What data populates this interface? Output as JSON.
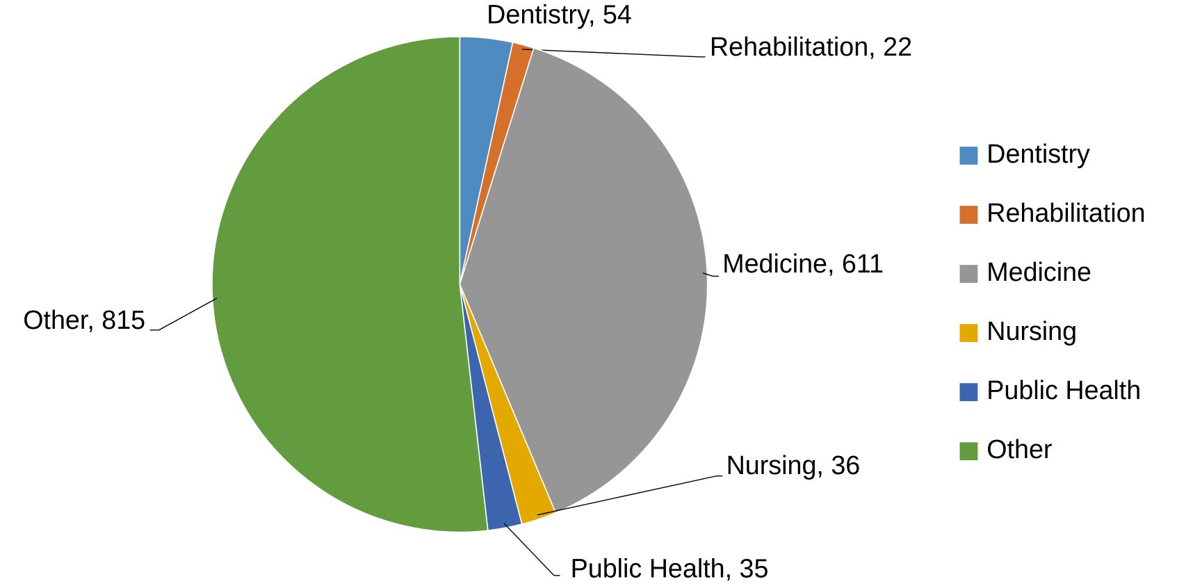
{
  "chart_data": {
    "type": "pie",
    "categories": [
      "Dentistry",
      "Rehabilitation",
      "Medicine",
      "Nursing",
      "Public Health",
      "Other"
    ],
    "values": [
      54,
      22,
      611,
      36,
      35,
      815
    ],
    "value_labels": [
      "Dentistry, 54",
      "Rehabilitation, 22",
      "Medicine, 611",
      "Nursing, 36",
      "Public Health, 35",
      "Other, 815"
    ],
    "colors": [
      "#4f8bc0",
      "#d5702a",
      "#969696",
      "#e3a900",
      "#3d65ae",
      "#639b3f"
    ],
    "legend": "right"
  }
}
